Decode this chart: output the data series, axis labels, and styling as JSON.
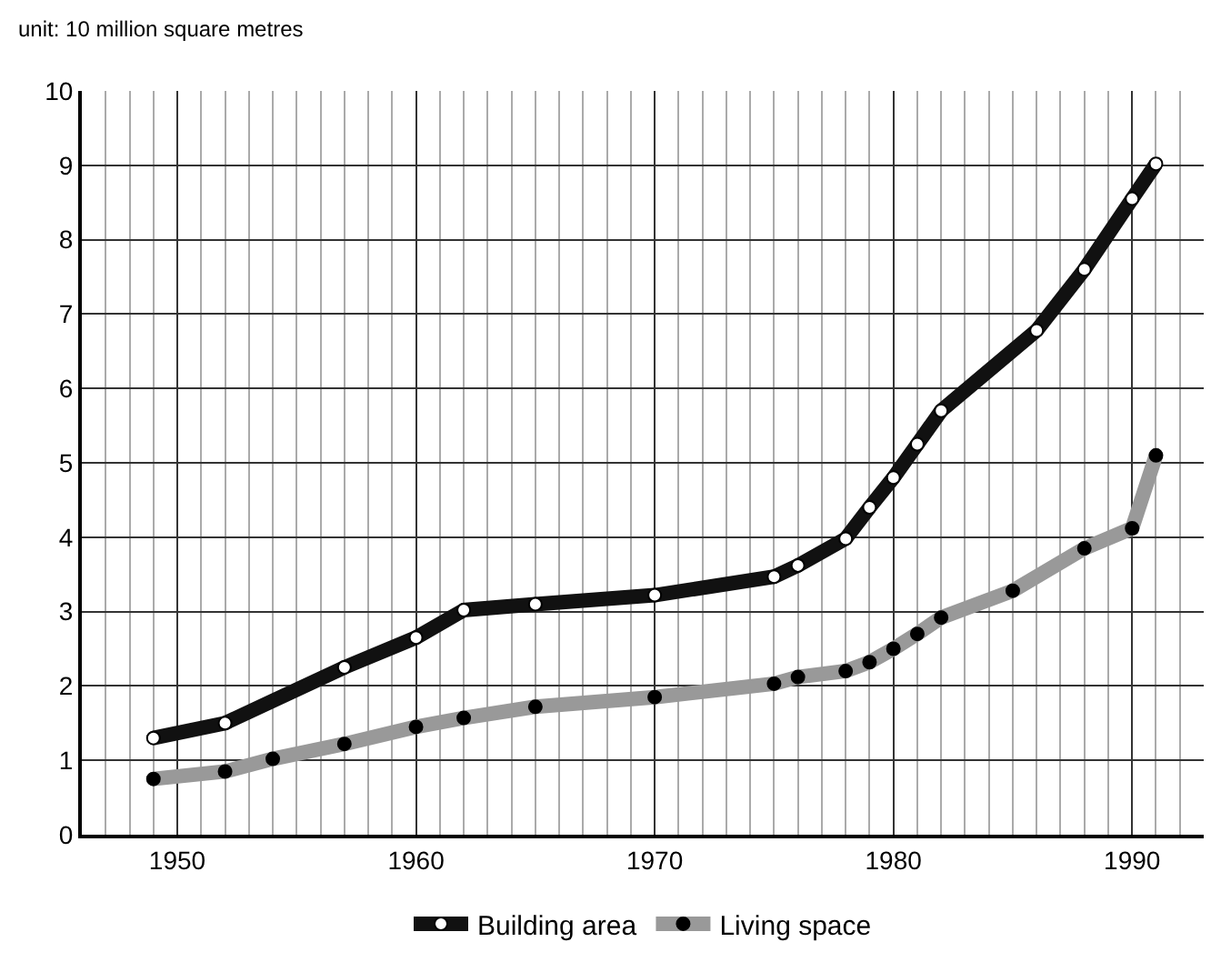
{
  "chart_data": {
    "type": "line",
    "ylabel": "unit: 10 million square metres",
    "x": [
      1949,
      1952,
      1957,
      1960,
      1962,
      1965,
      1970,
      1975,
      1976,
      1978,
      1979,
      1980,
      1981,
      1982,
      1986,
      1988,
      1990,
      1991
    ],
    "series": [
      {
        "name": "Building area",
        "color": "#111111",
        "values": [
          1.3,
          1.5,
          2.25,
          2.65,
          3.02,
          3.1,
          3.22,
          3.47,
          3.62,
          3.98,
          4.4,
          4.8,
          5.25,
          5.7,
          6.78,
          7.6,
          8.55,
          9.02
        ]
      },
      {
        "name": "Living space",
        "color": "#999999",
        "x": [
          1949,
          1952,
          1954,
          1957,
          1960,
          1962,
          1965,
          1970,
          1975,
          1976,
          1978,
          1979,
          1980,
          1981,
          1982,
          1985,
          1988,
          1990,
          1991
        ],
        "values": [
          0.75,
          0.85,
          1.02,
          1.22,
          1.45,
          1.57,
          1.72,
          1.85,
          2.03,
          2.12,
          2.2,
          2.32,
          2.5,
          2.7,
          2.92,
          3.28,
          3.85,
          4.12,
          5.1
        ]
      }
    ],
    "xlim": [
      1946,
      1993
    ],
    "xticks": [
      1950,
      1960,
      1970,
      1980,
      1990
    ],
    "ylim": [
      0,
      10
    ],
    "yticks": [
      0,
      1,
      2,
      3,
      4,
      5,
      6,
      7,
      8,
      9,
      10
    ],
    "grid": true,
    "legend": "bottom",
    "marker": "circle",
    "line_style": "solid"
  }
}
